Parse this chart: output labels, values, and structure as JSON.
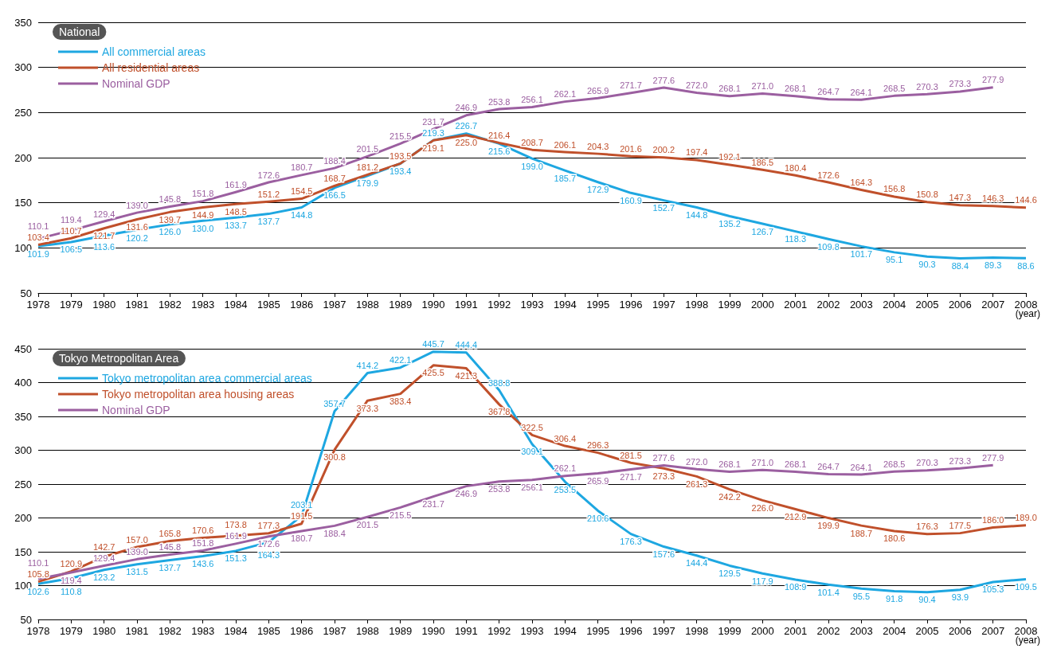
{
  "chart_data": [
    {
      "type": "line",
      "legend_title": "National",
      "xlabel": "(year)",
      "categories": [
        "1978",
        "1979",
        "1980",
        "1981",
        "1982",
        "1983",
        "1984",
        "1985",
        "1986",
        "1987",
        "1988",
        "1989",
        "1990",
        "1991",
        "1992",
        "1993",
        "1994",
        "1995",
        "1996",
        "1997",
        "1998",
        "1999",
        "2000",
        "2001",
        "2002",
        "2003",
        "2004",
        "2005",
        "2006",
        "2007",
        "2008"
      ],
      "series": [
        {
          "name": "All commercial areas",
          "color": "#1ea7e1",
          "values": [
            101.9,
            106.5,
            113.6,
            120.2,
            126.0,
            130.0,
            133.7,
            137.7,
            144.8,
            166.5,
            179.9,
            193.4,
            219.3,
            226.7,
            215.6,
            199.0,
            185.7,
            172.9,
            160.9,
            152.7,
            144.8,
            135.2,
            126.7,
            118.3,
            109.8,
            101.7,
            95.1,
            90.3,
            88.4,
            89.3,
            88.6
          ],
          "value_labels": [
            "101.9",
            "106.5",
            "113.6",
            "120.2",
            "126.0",
            "130.0",
            "133.7",
            "137.7",
            "144.8",
            "166.5",
            "179.9",
            "193.4",
            "219.3",
            "226.7",
            "215.6",
            "199.0",
            "185.7",
            "172.9",
            "160.9",
            "152.7",
            "144.8",
            "135.2",
            "126.7",
            "118.3",
            "109.8",
            "101.7",
            "95.1",
            "90.3",
            "88.4",
            "89.3",
            "88.6"
          ]
        },
        {
          "name": "All residential areas",
          "color": "#c0502b",
          "values": [
            103.4,
            110.7,
            121.7,
            131.6,
            139.7,
            144.9,
            148.5,
            151.2,
            154.5,
            168.7,
            181.2,
            193.5,
            219.1,
            225.0,
            216.4,
            208.7,
            206.1,
            204.3,
            201.6,
            200.2,
            197.4,
            192.1,
            186.5,
            180.4,
            172.6,
            164.3,
            156.8,
            150.8,
            147.3,
            146.3,
            144.6
          ],
          "value_labels": [
            "103.4",
            "110.7",
            "121.7",
            "131.6",
            "139.7",
            "144.9",
            "148.5",
            "151.2",
            "154.5",
            "168.7",
            "181.2",
            "193.5",
            "219.1",
            "225.0",
            "216.4",
            "208.7",
            "206.1",
            "204.3",
            "201.6",
            "200.2",
            "197.4",
            "192.1",
            "186.5",
            "180.4",
            "172.6",
            "164.3",
            "156.8",
            "150.8",
            "147.3",
            "146.3",
            "144.6"
          ]
        },
        {
          "name": "Nominal GDP",
          "color": "#9b5fa0",
          "values": [
            110.1,
            119.4,
            129.4,
            139.0,
            145.8,
            151.8,
            161.9,
            172.6,
            180.7,
            188.4,
            201.5,
            215.5,
            231.7,
            246.9,
            253.8,
            256.1,
            262.1,
            265.9,
            271.7,
            277.6,
            272.0,
            268.1,
            271.0,
            268.1,
            264.7,
            264.1,
            268.5,
            270.3,
            273.3,
            277.9,
            null
          ],
          "value_labels": [
            "110.1",
            "119.4",
            "129.4",
            "139.0",
            "145.8",
            "151.8",
            "161.9",
            "172.6",
            "180.7",
            "188.4",
            "201.5",
            "215.5",
            "231.7",
            "246.9",
            "253.8",
            "256.1",
            "262.1",
            "265.9",
            "271.7",
            "277.6",
            "272.0",
            "268.1",
            "271.0",
            "268.1",
            "264.7",
            "264.1",
            "268.5",
            "270.3",
            "273.3",
            "277.9",
            null
          ]
        }
      ],
      "ylim": [
        50,
        350
      ],
      "yticks": [
        50,
        100,
        150,
        200,
        250,
        300,
        350
      ],
      "grid": "y",
      "legend": "top left",
      "marker": "none"
    },
    {
      "type": "line",
      "legend_title": "Tokyo Metropolitan Area",
      "xlabel": "(year)",
      "categories": [
        "1978",
        "1979",
        "1980",
        "1981",
        "1982",
        "1983",
        "1984",
        "1985",
        "1986",
        "1987",
        "1988",
        "1989",
        "1990",
        "1991",
        "1992",
        "1993",
        "1994",
        "1995",
        "1996",
        "1997",
        "1998",
        "1999",
        "2000",
        "2001",
        "2002",
        "2003",
        "2004",
        "2005",
        "2006",
        "2007",
        "2008"
      ],
      "series": [
        {
          "name": "Tokyo metropolitan area commercial areas",
          "color": "#1ea7e1",
          "values": [
            102.6,
            110.8,
            123.2,
            131.5,
            137.7,
            143.6,
            151.3,
            164.3,
            203.1,
            357.7,
            414.2,
            422.1,
            445.7,
            444.4,
            388.8,
            309.1,
            253.5,
            210.6,
            176.3,
            157.6,
            144.4,
            129.5,
            117.9,
            108.9,
            101.4,
            95.5,
            91.8,
            90.4,
            93.9,
            105.3,
            109.5
          ],
          "value_labels": [
            "102.6",
            "110.8",
            "123.2",
            "131.5",
            "137.7",
            "143.6",
            "151.3",
            "164.3",
            "203.1",
            "357.7",
            "414.2",
            "422.1",
            "445.7",
            "444.4",
            "388.8",
            "309.1",
            "253.5",
            "210.6",
            "176.3",
            "157.6",
            "144.4",
            "129.5",
            "117.9",
            "108.9",
            "101.4",
            "95.5",
            "91.8",
            "90.4",
            "93.9",
            "105.3",
            "109.5"
          ]
        },
        {
          "name": "Tokyo metropolitan area housing areas",
          "color": "#c0502b",
          "values": [
            105.8,
            120.9,
            142.7,
            157.0,
            165.8,
            170.6,
            173.8,
            177.3,
            191.5,
            300.8,
            373.3,
            383.4,
            425.5,
            421.3,
            367.8,
            322.5,
            306.4,
            296.3,
            281.5,
            273.3,
            261.3,
            242.2,
            226.0,
            212.9,
            199.9,
            188.7,
            180.6,
            176.3,
            177.5,
            186.0,
            189.0
          ],
          "value_labels": [
            "105.8",
            "120.9",
            "142.7",
            "157.0",
            "165.8",
            "170.6",
            "173.8",
            "177.3",
            "191.5",
            "300.8",
            "373.3",
            "383.4",
            "425.5",
            "421.3",
            "367.8",
            "322.5",
            "306.4",
            "296.3",
            "281.5",
            "273.3",
            "261.3",
            "242.2",
            "226.0",
            "212.9",
            "199.9",
            "188.7",
            "180.6",
            "176.3",
            "177.5",
            "186.0",
            "189.0"
          ]
        },
        {
          "name": "Nominal GDP",
          "color": "#9b5fa0",
          "values": [
            110.1,
            119.4,
            129.4,
            139.0,
            145.8,
            151.8,
            161.9,
            172.6,
            180.7,
            188.4,
            201.5,
            215.5,
            231.7,
            246.9,
            253.8,
            256.1,
            262.1,
            265.9,
            271.7,
            277.6,
            272.0,
            268.1,
            271.0,
            268.1,
            264.7,
            264.1,
            268.5,
            270.3,
            273.3,
            277.9,
            null
          ],
          "value_labels": [
            "110.1",
            "119.4",
            "129.4",
            "139.0",
            "145.8",
            "151.8",
            "161.9",
            "172.6",
            "180.7",
            "188.4",
            "201.5",
            "215.5",
            "231.7",
            "246.9",
            "253.8",
            "256.1",
            "262.1",
            "265.9",
            "271.7",
            "277.6",
            "272.0",
            "268.1",
            "271.0",
            "268.1",
            "264.7",
            "264.1",
            "268.5",
            "270.3",
            "273.3",
            "277.9",
            null
          ]
        }
      ],
      "ylim": [
        50,
        450
      ],
      "yticks": [
        50,
        100,
        150,
        200,
        250,
        300,
        350,
        400,
        450
      ],
      "grid": "y",
      "legend": "top left",
      "marker": "none"
    }
  ]
}
